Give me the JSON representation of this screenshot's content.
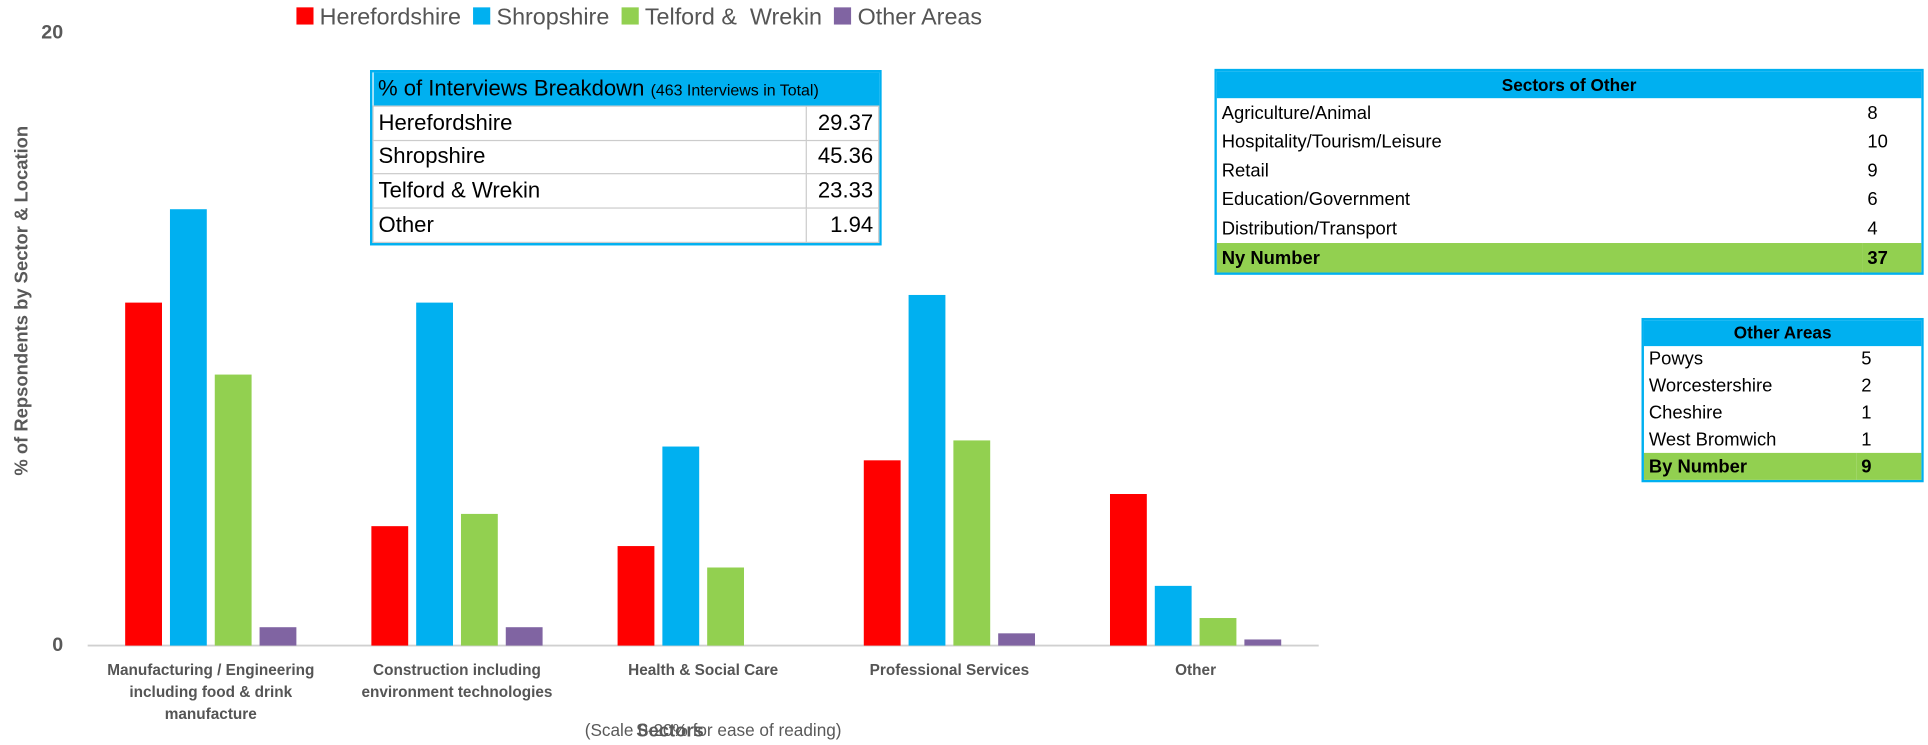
{
  "chart_data": {
    "type": "bar",
    "y_axis_label": "% of Repsondents by Sector & Location",
    "x_axis_label": "Sectors",
    "x_axis_note": "(Scale 0-20%  for ease of reading)",
    "categories": [
      "Manufacturing / Engineering including food & drink manufacture",
      "Construction including environment technologies",
      "Health & Social Care",
      "Professional Services",
      "Other"
    ],
    "series": [
      {
        "name": "Herefordshire",
        "color": "#ff0000",
        "values": [
          11.2,
          3.9,
          3.25,
          6.05,
          4.95
        ]
      },
      {
        "name": "Shropshire",
        "color": "#00b0f0",
        "values": [
          14.25,
          11.2,
          6.5,
          11.45,
          1.95
        ]
      },
      {
        "name": "Telford &  Wrekin",
        "color": "#92d050",
        "values": [
          8.85,
          4.3,
          2.55,
          6.7,
          0.9
        ]
      },
      {
        "name": "Other Areas",
        "color": "#8064a2",
        "values": [
          0.6,
          0.6,
          0,
          0.4,
          0.2
        ]
      }
    ],
    "ylim": [
      0,
      20
    ],
    "yticks": [
      0,
      20
    ],
    "legend": "top"
  },
  "tables": {
    "breakdown": {
      "title": "% of Interviews Breakdown",
      "subtitle": "(463 Interviews in Total)",
      "rows": [
        [
          "Herefordshire",
          29.37
        ],
        [
          "Shropshire",
          45.36
        ],
        [
          "Telford & Wrekin",
          23.33
        ],
        [
          "Other",
          1.94
        ]
      ]
    },
    "sectors_of_other": {
      "title": "Sectors of Other",
      "rows": [
        [
          "Agriculture/Animal",
          8
        ],
        [
          "Hospitality/Tourism/Leisure",
          10
        ],
        [
          "Retail",
          9
        ],
        [
          "Education/Government",
          6
        ],
        [
          "Distribution/Transport",
          4
        ]
      ],
      "total": [
        "Ny Number",
        37
      ]
    },
    "other_areas": {
      "title": "Other Areas",
      "rows": [
        [
          "Powys",
          5
        ],
        [
          "Worcestershire",
          2
        ],
        [
          "Cheshire",
          1
        ],
        [
          "West Bromwich",
          1
        ]
      ],
      "total": [
        "By Number",
        9
      ]
    }
  }
}
